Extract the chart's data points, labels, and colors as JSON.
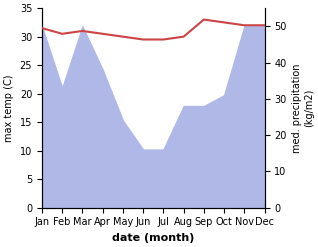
{
  "months": [
    "Jan",
    "Feb",
    "Mar",
    "Apr",
    "May",
    "Jun",
    "Jul",
    "Aug",
    "Sep",
    "Oct",
    "Nov",
    "Dec"
  ],
  "month_indices": [
    0,
    1,
    2,
    3,
    4,
    5,
    6,
    7,
    8,
    9,
    10,
    11
  ],
  "temperature": [
    31.5,
    30.5,
    31.0,
    30.5,
    30.0,
    29.5,
    29.5,
    30.0,
    33.0,
    32.5,
    32.0,
    32.0
  ],
  "precipitation": [
    50,
    33,
    50,
    38,
    24,
    16,
    16,
    28,
    28,
    31,
    50,
    50
  ],
  "temp_color": "#cc4444",
  "precip_color": "#b0b8e8",
  "temp_ylim": [
    0,
    35
  ],
  "precip_ylim": [
    0,
    55
  ],
  "temp_yticks": [
    0,
    5,
    10,
    15,
    20,
    25,
    30,
    35
  ],
  "precip_yticks": [
    0,
    10,
    20,
    30,
    40,
    50
  ],
  "xlabel": "date (month)",
  "ylabel_left": "max temp (C)",
  "ylabel_right": "med. precipitation\n(kg/m2)",
  "fig_width": 3.18,
  "fig_height": 2.47,
  "dpi": 100
}
